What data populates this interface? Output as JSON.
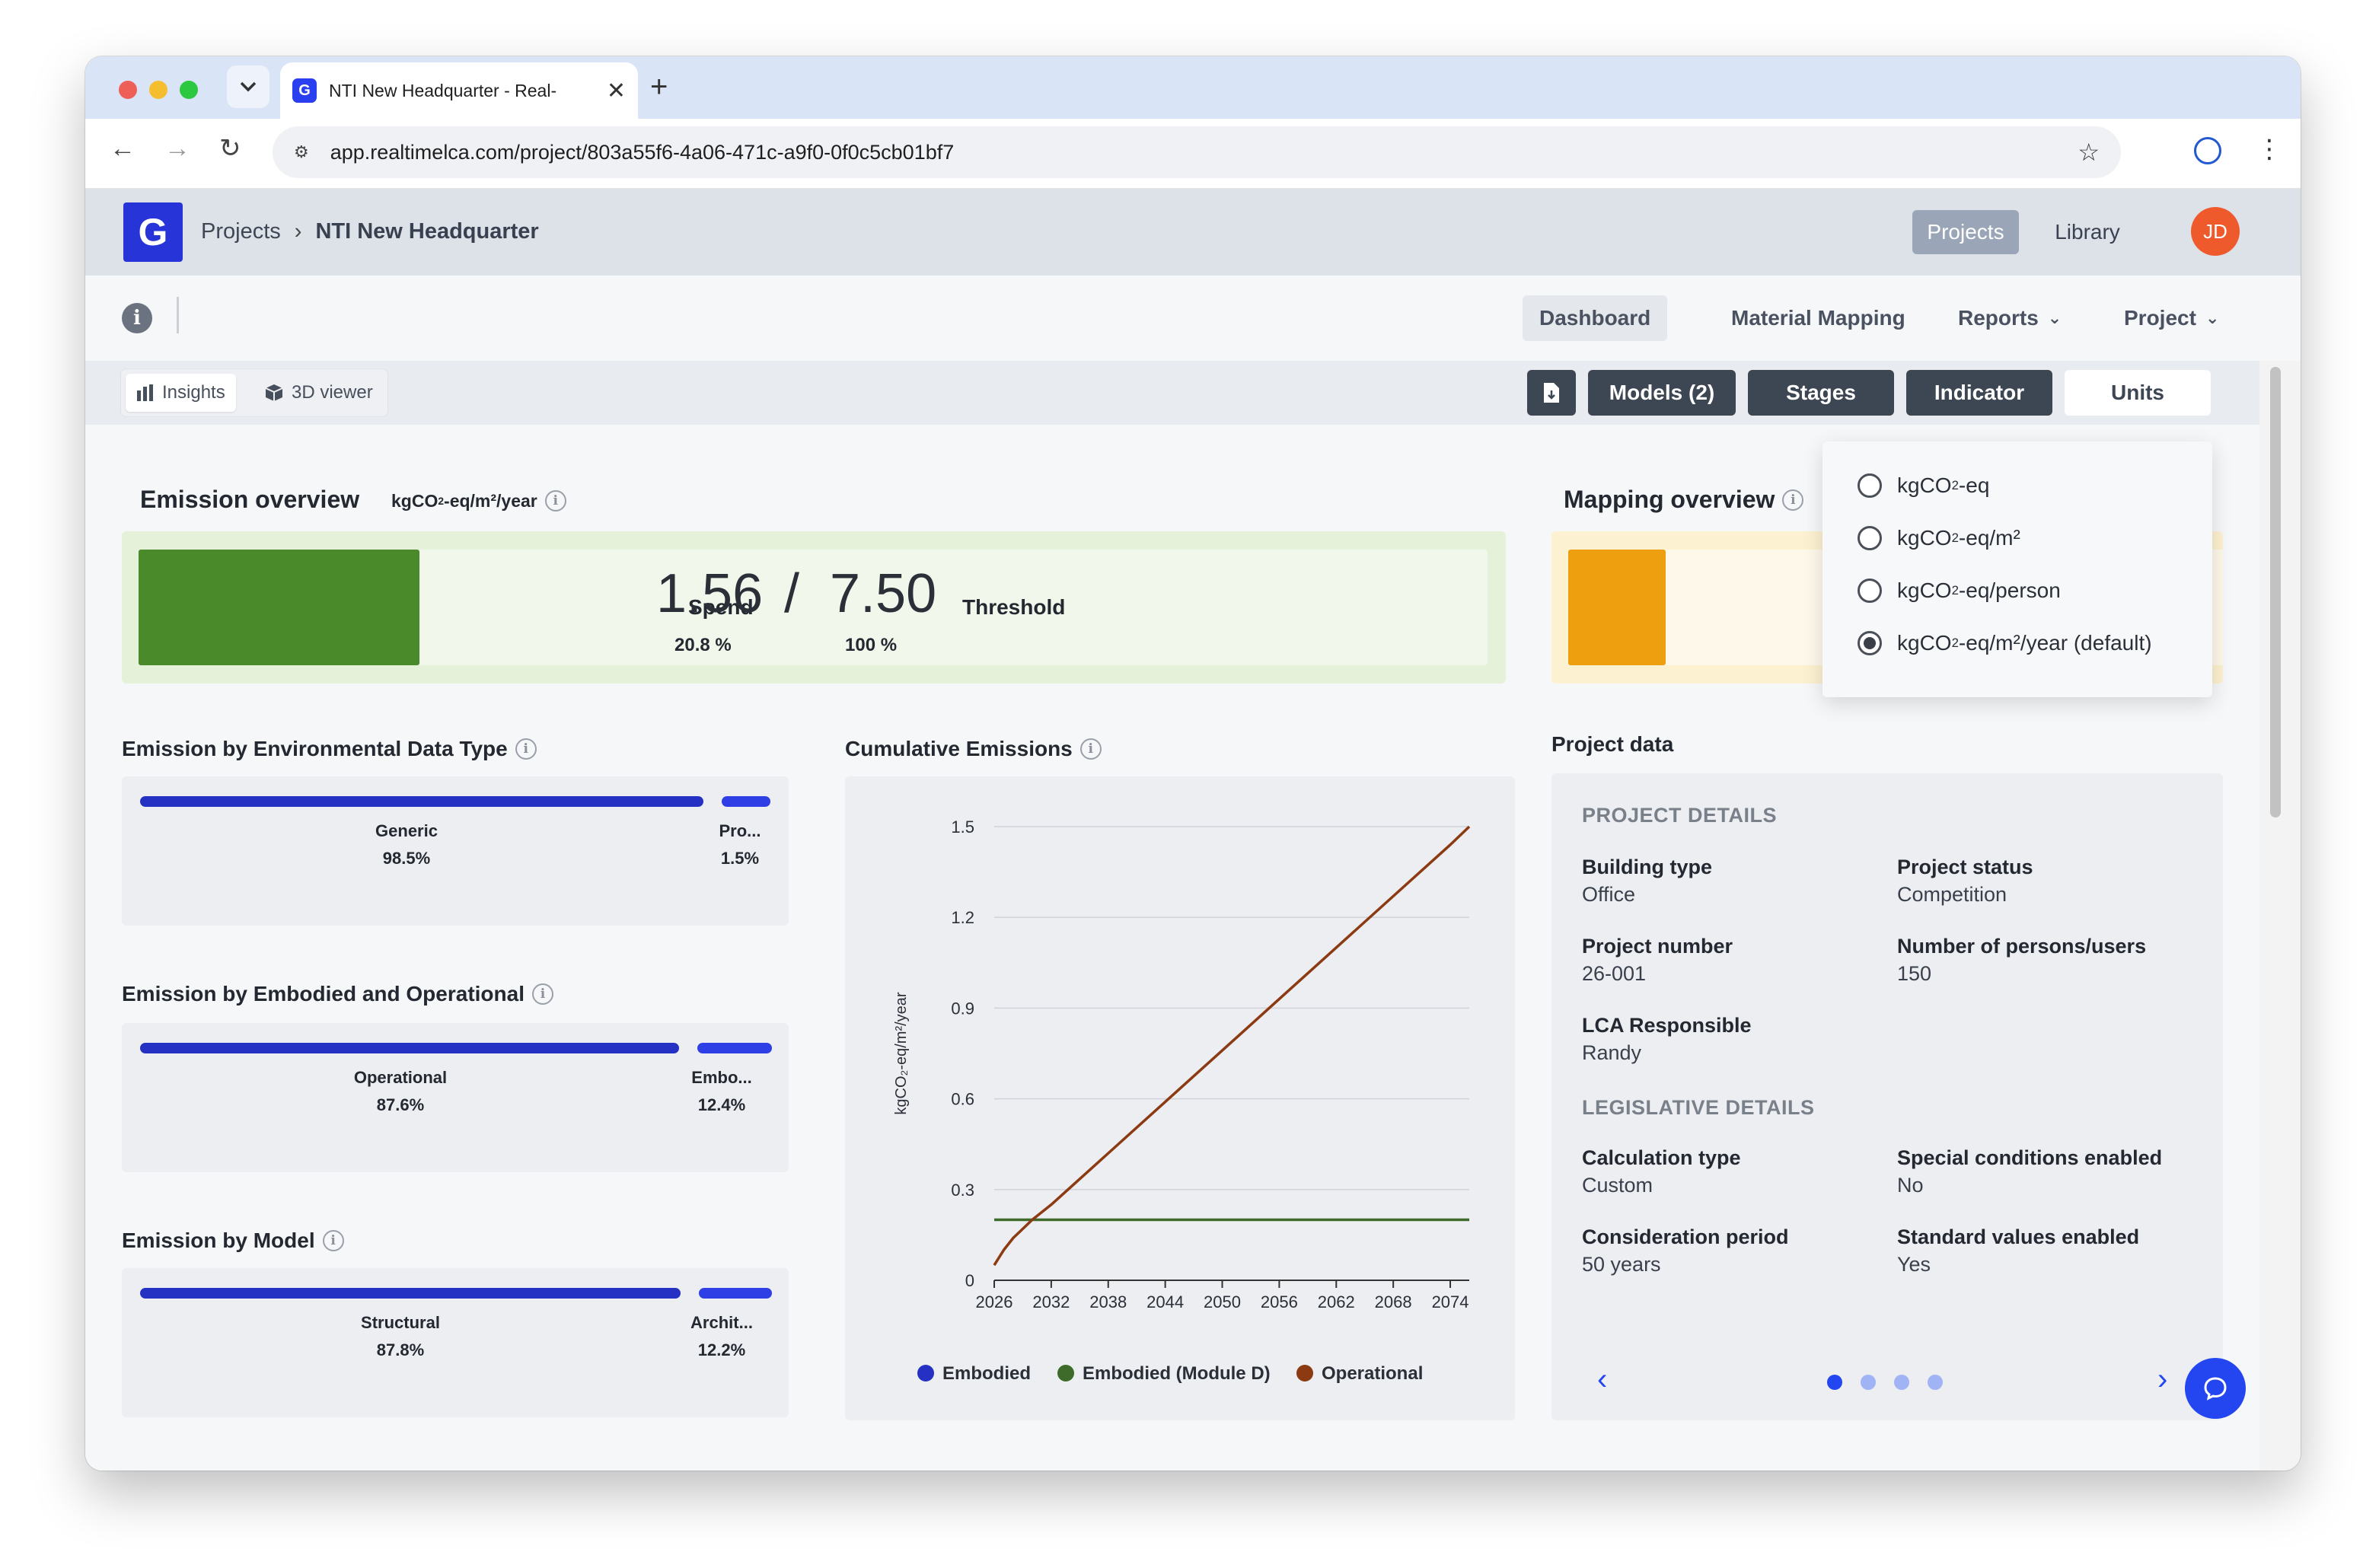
{
  "browser": {
    "tab_title": "NTI New Headquarter - Real-",
    "url": "app.realtimelca.com/project/803a55f6-4a06-471c-a9f0-0f0c5cb01bf7"
  },
  "app": {
    "breadcrumb_root": "Projects",
    "breadcrumb_current": "NTI New Headquarter",
    "header_nav": [
      "Projects",
      "Library"
    ],
    "avatar_initials": "JD",
    "nav": {
      "dashboard": "Dashboard",
      "material_mapping": "Material Mapping",
      "reports": "Reports",
      "project": "Project"
    },
    "view_tabs": {
      "insights": "Insights",
      "viewer": "3D viewer"
    },
    "toolbar_buttons": {
      "models": "Models (2)",
      "stages": "Stages",
      "indicator": "Indicator",
      "units": "Units"
    }
  },
  "emission_overview": {
    "title": "Emission overview",
    "unit_prefix": "kgCO",
    "unit_sub": "2",
    "unit_suffix": "-eq/m²/year",
    "spend_label": "Spend",
    "spend_value": "1.56",
    "divider": "/",
    "threshold_value": "7.50",
    "threshold_label": "Threshold",
    "spend_pct": "20.8 %",
    "threshold_pct": "100 %",
    "fill_fraction": 0.208,
    "color": "#4b8a2a"
  },
  "mapping_overview": {
    "title": "Mapping overview",
    "color": "#ee9f10"
  },
  "breakdowns": [
    {
      "title": "Emission by Environmental Data Type",
      "items": [
        {
          "label": "Generic",
          "pct": "98.5%",
          "value": 0.985
        },
        {
          "label": "Pro...",
          "pct": "1.5%",
          "value": 0.015
        }
      ]
    },
    {
      "title": "Emission by Embodied and Operational",
      "items": [
        {
          "label": "Operational",
          "pct": "87.6%",
          "value": 0.876
        },
        {
          "label": "Embo...",
          "pct": "12.4%",
          "value": 0.124
        }
      ]
    },
    {
      "title": "Emission by Model",
      "items": [
        {
          "label": "Structural",
          "pct": "87.8%",
          "value": 0.878
        },
        {
          "label": "Archit...",
          "pct": "12.2%",
          "value": 0.122
        }
      ]
    }
  ],
  "units_menu": {
    "options": [
      {
        "pre": "kgCO",
        "sub": "2",
        "post": "-eq",
        "selected": false
      },
      {
        "pre": "kgCO",
        "sub": "2",
        "post": "-eq/m²",
        "selected": false
      },
      {
        "pre": "kgCO",
        "sub": "2",
        "post": "-eq/person",
        "selected": false
      },
      {
        "pre": "kgCO",
        "sub": "2",
        "post": "-eq/m²/year (default)",
        "selected": true
      }
    ]
  },
  "project_data": {
    "title": "Project data",
    "section1": "PROJECT DETAILS",
    "section2": "LEGISLATIVE DETAILS",
    "fields": [
      {
        "key": "Building type",
        "value": "Office"
      },
      {
        "key": "Project status",
        "value": "Competition"
      },
      {
        "key": "Project number",
        "value": "26-001"
      },
      {
        "key": "Number of persons/users",
        "value": "150"
      },
      {
        "key": "LCA Responsible",
        "value": "Randy"
      },
      {
        "key": "Calculation type",
        "value": "Custom"
      },
      {
        "key": "Special conditions enabled",
        "value": "No"
      },
      {
        "key": "Consideration period",
        "value": "50 years"
      },
      {
        "key": "Standard values enabled",
        "value": "Yes"
      }
    ],
    "pages": 4,
    "active_page": 1
  },
  "chart_data": {
    "type": "line",
    "title": "Cumulative Emissions",
    "ylabel": "kgCO₂-eq/m²/year",
    "xlabel": "",
    "x_ticks": [
      "2026",
      "2032",
      "2038",
      "2044",
      "2050",
      "2056",
      "2062",
      "2068",
      "2074"
    ],
    "y_ticks": [
      "0",
      "0.3",
      "0.6",
      "0.9",
      "1.2",
      "1.5"
    ],
    "xlim": [
      2026,
      2076
    ],
    "ylim": [
      0,
      1.5
    ],
    "grid": true,
    "legend_position": "bottom",
    "series": [
      {
        "name": "Embodied",
        "color": "#2431c2",
        "x": [],
        "y": []
      },
      {
        "name": "Embodied (Module D)",
        "color": "#3f6b2a",
        "x": [
          2026,
          2076
        ],
        "y": [
          0.2,
          0.2
        ]
      },
      {
        "name": "Operational",
        "color": "#8b3a12",
        "x": [
          2026,
          2027,
          2028,
          2029,
          2030,
          2032,
          2038,
          2044,
          2050,
          2056,
          2062,
          2068,
          2074,
          2076
        ],
        "y": [
          0.05,
          0.1,
          0.14,
          0.17,
          0.2,
          0.25,
          0.42,
          0.59,
          0.76,
          0.93,
          1.1,
          1.27,
          1.44,
          1.5
        ]
      }
    ]
  },
  "colors": {
    "accent": "#2735d8",
    "dark_button": "#3d4653",
    "avatar": "#ee5a2c",
    "chat": "#2446f0"
  }
}
